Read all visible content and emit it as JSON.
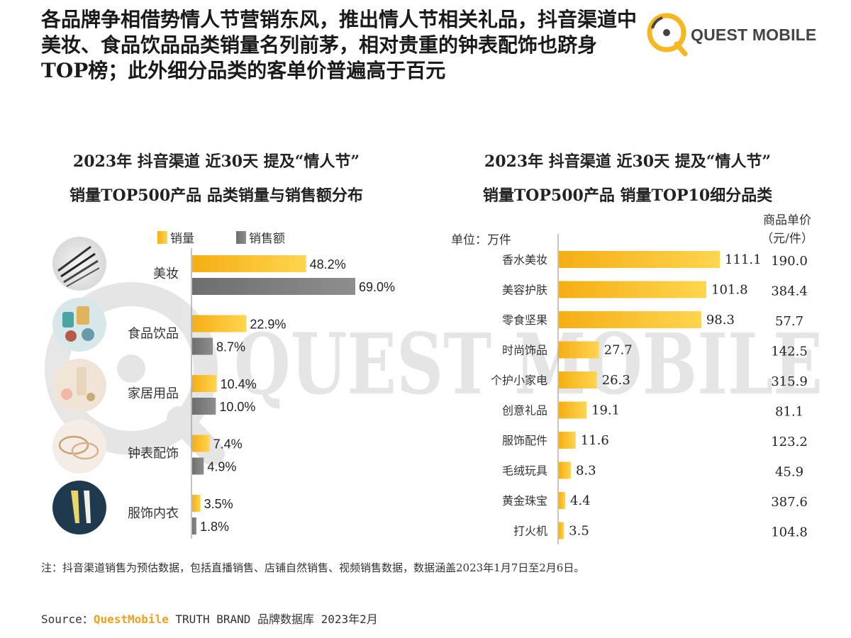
{
  "headline": "各品牌争相借势情人节营销东风，推出情人节相关礼品，抖音渠道中美妆、食品饮品品类销量名列前茅，相对贵重的钟表配饰也跻身TOP榜；此外细分品类的客单价普遍高于百元",
  "logo": {
    "text": "QUEST MOBILE",
    "icon": "quest-mobile-logo-icon"
  },
  "watermark": "QUEST MOBILE",
  "colors": {
    "gold": "#f7b720",
    "gold_light": "#ffd24d",
    "gray": "#7a7a7a",
    "brand": "#f0a11c"
  },
  "left_chart": {
    "title_line1": "2023年 抖音渠道 近30天 提及“情人节”",
    "title_line2": "销量TOP500产品 品类销量与销售额分布"
  },
  "right_chart": {
    "title_line1": "2023年 抖音渠道 近30天 提及“情人节”",
    "title_line2": "销量TOP500产品 销量TOP10细分品类",
    "unit_label": "单位：万件",
    "price_header_line1": "商品单价",
    "price_header_line2": "（元/件）"
  },
  "chart_data": [
    {
      "type": "bar",
      "orientation": "horizontal",
      "categories": [
        "美妆",
        "食品饮品",
        "家居用品",
        "钟表配饰",
        "服饰内衣"
      ],
      "series": [
        {
          "name": "销量",
          "values": [
            48.2,
            22.9,
            10.4,
            7.4,
            3.5
          ],
          "labels": [
            "48.2%",
            "22.9%",
            "10.4%",
            "7.4%",
            "3.5%"
          ]
        },
        {
          "name": "销售额",
          "values": [
            69.0,
            8.7,
            10.0,
            4.9,
            1.8
          ],
          "labels": [
            "69.0%",
            "8.7%",
            "10.0%",
            "4.9%",
            "1.8%"
          ]
        }
      ],
      "legend": "top",
      "xlim": [
        0,
        75
      ]
    },
    {
      "type": "bar",
      "orientation": "horizontal",
      "categories": [
        "香水美妆",
        "美容护肤",
        "零食坚果",
        "时尚饰品",
        "个护小家电",
        "创意礼品",
        "服饰配件",
        "毛绒玩具",
        "黄金珠宝",
        "打火机"
      ],
      "values": [
        111.1,
        101.8,
        98.3,
        27.7,
        26.3,
        19.1,
        11.6,
        8.3,
        4.4,
        3.5
      ],
      "value_labels": [
        "111.1",
        "101.8",
        "98.3",
        "27.7",
        "26.3",
        "19.1",
        "11.6",
        "8.3",
        "4.4",
        "3.5"
      ],
      "unit_price": [
        "190.0",
        "384.4",
        "57.7",
        "142.5",
        "315.9",
        "81.1",
        "123.2",
        "45.9",
        "387.6",
        "104.8"
      ],
      "xlim": [
        0,
        115
      ]
    }
  ],
  "footnote": "注：抖音渠道销售为预估数据，包括直播销售、店铺自然销售、视频销售数据，数据涵盖2023年1月7日至2月6日。",
  "source": {
    "prefix": "Source：",
    "brand": "QuestMobile",
    "rest": " TRUTH BRAND 品牌数据库 2023年2月"
  }
}
